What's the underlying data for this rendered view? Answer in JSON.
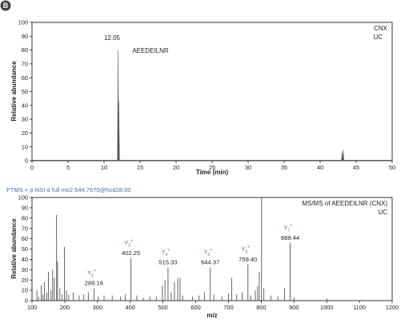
{
  "panel_label": "B",
  "scan_header": "FTMS + p NSI d full ms2 544.7670@hcd28.00",
  "colors": {
    "trace": "#555555",
    "blue_text": "#3e6fb5",
    "badge_fill": "#444444",
    "axis": "#000000",
    "tick_text": "#222222"
  },
  "chart_data": [
    {
      "type": "line",
      "xlabel": "Time (min)",
      "ylabel": "Relative abundance",
      "xlim": [
        0,
        50
      ],
      "ylim": [
        0,
        100
      ],
      "xticks": [
        "0",
        "5",
        "10",
        "15",
        "20",
        "25",
        "30",
        "35",
        "40",
        "45",
        "50"
      ],
      "yticks": [
        "0",
        "10",
        "20",
        "30",
        "40",
        "50",
        "60",
        "70",
        "80",
        "90",
        "100"
      ],
      "legend": [
        "CNX",
        "UC"
      ],
      "annotations": [
        {
          "text": "12.05",
          "x": 12.05
        },
        {
          "text": "AEEDEILNR"
        }
      ],
      "peaks": [
        {
          "x": 11.95,
          "y": 80
        },
        {
          "x": 12.05,
          "y": 43
        },
        {
          "x": 43.05,
          "y": 6
        },
        {
          "x": 43.2,
          "y": 8
        }
      ]
    },
    {
      "type": "bar",
      "xlabel": "m/z",
      "ylabel": "Relative abundance",
      "xlim": [
        100,
        1200
      ],
      "ylim": [
        0,
        100
      ],
      "xticks": [
        "100",
        "200",
        "300",
        "400",
        "500",
        "600",
        "700",
        "800",
        "900",
        "1000",
        "1100",
        "1200"
      ],
      "yticks": [
        "0",
        "10",
        "20",
        "30",
        "40",
        "50",
        "60",
        "70",
        "80",
        "90",
        "100"
      ],
      "legend": [
        "MS/MS of AEEDEILNR (CNX)",
        "UC"
      ],
      "annotations": [
        {
          "ion": "Y",
          "sub": "2",
          "sup": "+",
          "mz": "289.16",
          "x": 289.16,
          "y": 12
        },
        {
          "ion": "Y",
          "sub": "3",
          "sup": "+",
          "mz": "402.25",
          "x": 402.25,
          "y": 41
        },
        {
          "ion": "Y",
          "sub": "4",
          "sup": "+",
          "mz": "515.33",
          "x": 515.33,
          "y": 32
        },
        {
          "ion": "Y",
          "sub": "5",
          "sup": "+",
          "mz": "644.37",
          "x": 644.37,
          "y": 32
        },
        {
          "ion": "Y",
          "sub": "6",
          "sup": "+",
          "mz": "759.40",
          "x": 759.4,
          "y": 35
        },
        {
          "ion": "Y",
          "sub": "7",
          "sup": "+",
          "mz": "888.44",
          "x": 888.44,
          "y": 56
        }
      ],
      "peaks": [
        {
          "x": 115,
          "y": 10
        },
        {
          "x": 120,
          "y": 4
        },
        {
          "x": 128,
          "y": 15
        },
        {
          "x": 133,
          "y": 6
        },
        {
          "x": 138,
          "y": 18
        },
        {
          "x": 145,
          "y": 8
        },
        {
          "x": 150,
          "y": 28
        },
        {
          "x": 158,
          "y": 10
        },
        {
          "x": 163,
          "y": 30
        },
        {
          "x": 168,
          "y": 22
        },
        {
          "x": 175,
          "y": 83
        },
        {
          "x": 178,
          "y": 38
        },
        {
          "x": 185,
          "y": 12
        },
        {
          "x": 192,
          "y": 6
        },
        {
          "x": 199,
          "y": 52
        },
        {
          "x": 205,
          "y": 10
        },
        {
          "x": 212,
          "y": 6
        },
        {
          "x": 226,
          "y": 8
        },
        {
          "x": 244,
          "y": 5
        },
        {
          "x": 258,
          "y": 6
        },
        {
          "x": 272,
          "y": 8
        },
        {
          "x": 289.16,
          "y": 12
        },
        {
          "x": 302,
          "y": 4
        },
        {
          "x": 320,
          "y": 5
        },
        {
          "x": 345,
          "y": 5
        },
        {
          "x": 370,
          "y": 4
        },
        {
          "x": 385,
          "y": 6
        },
        {
          "x": 402.25,
          "y": 41
        },
        {
          "x": 420,
          "y": 5
        },
        {
          "x": 440,
          "y": 3
        },
        {
          "x": 460,
          "y": 4
        },
        {
          "x": 480,
          "y": 4
        },
        {
          "x": 498,
          "y": 14
        },
        {
          "x": 506,
          "y": 20
        },
        {
          "x": 515.33,
          "y": 32
        },
        {
          "x": 525,
          "y": 8
        },
        {
          "x": 535,
          "y": 18
        },
        {
          "x": 545,
          "y": 22
        },
        {
          "x": 552,
          "y": 22
        },
        {
          "x": 560,
          "y": 5
        },
        {
          "x": 590,
          "y": 4
        },
        {
          "x": 610,
          "y": 5
        },
        {
          "x": 627,
          "y": 8
        },
        {
          "x": 644.37,
          "y": 32
        },
        {
          "x": 655,
          "y": 6
        },
        {
          "x": 680,
          "y": 4
        },
        {
          "x": 700,
          "y": 7
        },
        {
          "x": 710,
          "y": 22
        },
        {
          "x": 725,
          "y": 6
        },
        {
          "x": 742,
          "y": 8
        },
        {
          "x": 759.4,
          "y": 35
        },
        {
          "x": 768,
          "y": 5
        },
        {
          "x": 782,
          "y": 10
        },
        {
          "x": 789,
          "y": 14
        },
        {
          "x": 794,
          "y": 28
        },
        {
          "x": 801,
          "y": 100
        },
        {
          "x": 808,
          "y": 12
        },
        {
          "x": 830,
          "y": 5
        },
        {
          "x": 851,
          "y": 4
        },
        {
          "x": 871,
          "y": 12
        },
        {
          "x": 888.44,
          "y": 56
        },
        {
          "x": 900,
          "y": 3
        },
        {
          "x": 1001,
          "y": 2
        }
      ]
    }
  ]
}
